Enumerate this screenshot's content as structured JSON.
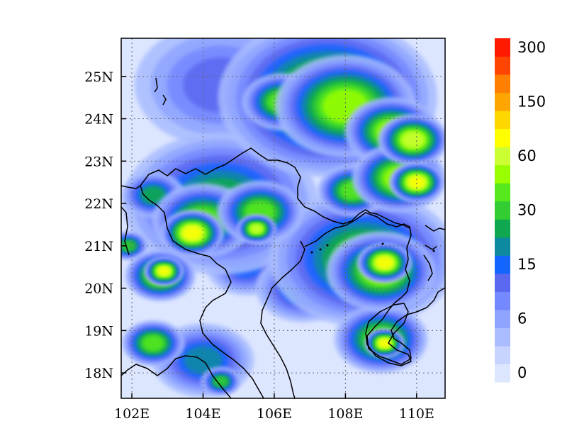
{
  "map": {
    "lon_range": [
      101.7,
      110.8
    ],
    "lat_range": [
      17.4,
      25.9
    ],
    "lon_ticks": [
      {
        "value": 102,
        "label": "102E"
      },
      {
        "value": 104,
        "label": "104E"
      },
      {
        "value": 106,
        "label": "106E"
      },
      {
        "value": 108,
        "label": "108E"
      },
      {
        "value": 110,
        "label": "110E"
      }
    ],
    "lat_ticks": [
      {
        "value": 25,
        "label": "25N"
      },
      {
        "value": 24,
        "label": "24N"
      },
      {
        "value": 23,
        "label": "23N"
      },
      {
        "value": 22,
        "label": "22N"
      },
      {
        "value": 21,
        "label": "21N"
      },
      {
        "value": 20,
        "label": "20N"
      },
      {
        "value": 19,
        "label": "19N"
      },
      {
        "value": 18,
        "label": "18N"
      }
    ],
    "grid": true,
    "field": "shaded contours over northern Vietnam and southern China",
    "colorbar": {
      "colors": [
        "#dde6ff",
        "#c6d4ff",
        "#a8bcff",
        "#8fa4ff",
        "#7488ff",
        "#5a68f0",
        "#1464ff",
        "#0e8aa0",
        "#0fa850",
        "#33cc33",
        "#55e81c",
        "#99ff00",
        "#ccff33",
        "#ffff00",
        "#ffd700",
        "#ffa500",
        "#ff7f00",
        "#ff4500",
        "#ff1a00"
      ],
      "labels": [
        {
          "index": 0,
          "text": "0"
        },
        {
          "index": 3,
          "text": "6"
        },
        {
          "index": 6,
          "text": "15"
        },
        {
          "index": 9,
          "text": "30"
        },
        {
          "index": 12,
          "text": "60"
        },
        {
          "index": 15,
          "text": "150"
        },
        {
          "index": 18,
          "text": "300"
        }
      ]
    },
    "blobs": [
      {
        "lon": 104.5,
        "lat": 24.8,
        "r": 2.2,
        "v": 5
      },
      {
        "lon": 107.5,
        "lat": 24.5,
        "r": 2.8,
        "v": 10
      },
      {
        "lon": 108.0,
        "lat": 24.3,
        "r": 1.8,
        "v": 11
      },
      {
        "lon": 106.2,
        "lat": 24.4,
        "r": 1.0,
        "v": 10
      },
      {
        "lon": 109.3,
        "lat": 23.7,
        "r": 1.2,
        "v": 11
      },
      {
        "lon": 109.9,
        "lat": 23.5,
        "r": 0.9,
        "v": 12
      },
      {
        "lon": 109.5,
        "lat": 22.6,
        "r": 1.2,
        "v": 11
      },
      {
        "lon": 110.0,
        "lat": 22.5,
        "r": 0.7,
        "v": 13
      },
      {
        "lon": 108.2,
        "lat": 22.3,
        "r": 0.9,
        "v": 10
      },
      {
        "lon": 104.5,
        "lat": 22.0,
        "r": 2.5,
        "v": 8
      },
      {
        "lon": 103.7,
        "lat": 21.3,
        "r": 0.8,
        "v": 13
      },
      {
        "lon": 104.0,
        "lat": 21.6,
        "r": 1.3,
        "v": 10
      },
      {
        "lon": 105.6,
        "lat": 21.8,
        "r": 1.1,
        "v": 10
      },
      {
        "lon": 105.5,
        "lat": 21.4,
        "r": 0.5,
        "v": 12
      },
      {
        "lon": 102.8,
        "lat": 20.3,
        "r": 0.9,
        "v": 11
      },
      {
        "lon": 102.9,
        "lat": 20.4,
        "r": 0.5,
        "v": 13
      },
      {
        "lon": 108.5,
        "lat": 20.7,
        "r": 2.4,
        "v": 9
      },
      {
        "lon": 109.0,
        "lat": 20.4,
        "r": 1.4,
        "v": 11
      },
      {
        "lon": 109.1,
        "lat": 20.6,
        "r": 0.7,
        "v": 13
      },
      {
        "lon": 106.8,
        "lat": 20.0,
        "r": 1.2,
        "v": 7
      },
      {
        "lon": 109.0,
        "lat": 18.8,
        "r": 1.2,
        "v": 10
      },
      {
        "lon": 109.1,
        "lat": 18.7,
        "r": 0.5,
        "v": 13
      },
      {
        "lon": 102.6,
        "lat": 18.7,
        "r": 0.8,
        "v": 10
      },
      {
        "lon": 104.0,
        "lat": 18.3,
        "r": 1.3,
        "v": 7
      },
      {
        "lon": 104.5,
        "lat": 17.8,
        "r": 0.5,
        "v": 9
      },
      {
        "lon": 101.9,
        "lat": 21.0,
        "r": 0.5,
        "v": 9
      },
      {
        "lon": 102.6,
        "lat": 22.2,
        "r": 0.8,
        "v": 8
      },
      {
        "lon": 105.2,
        "lat": 20.5,
        "r": 1.0,
        "v": 6
      },
      {
        "lon": 110.0,
        "lat": 21.0,
        "r": 0.7,
        "v": 6
      },
      {
        "lon": 106.0,
        "lat": 23.0,
        "r": 0.8,
        "v": 4
      },
      {
        "lon": 107.5,
        "lat": 23.3,
        "r": 0.9,
        "v": 6
      }
    ]
  }
}
